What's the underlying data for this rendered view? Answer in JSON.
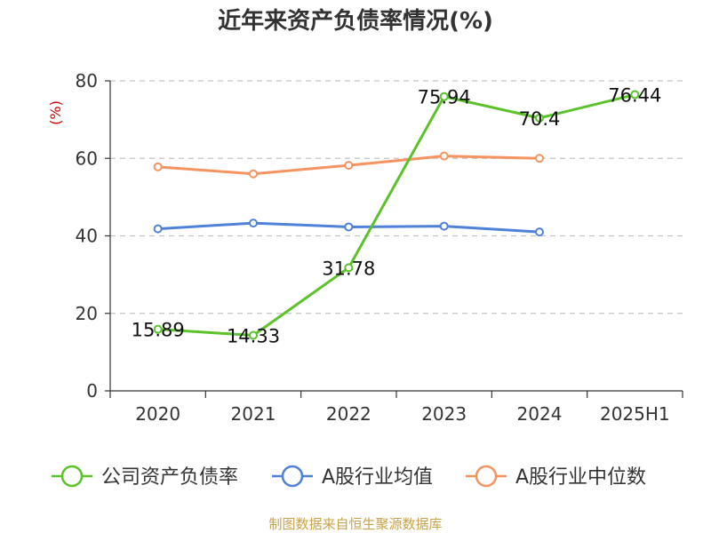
{
  "chart_data": {
    "type": "line",
    "title": "近年来资产负债率情况(%)",
    "ylabel": "(%)",
    "ylabel_color": "#cc0000",
    "ylim": [
      0,
      80
    ],
    "yticks": [
      0,
      20,
      40,
      60,
      80
    ],
    "categories": [
      "2020",
      "2021",
      "2022",
      "2023",
      "2024",
      "2025H1"
    ],
    "grid": "horizontal-dashed",
    "legend_placement": "bottom",
    "series": [
      {
        "name": "公司资产负债率",
        "color": "#5cc22a",
        "values": [
          15.89,
          14.33,
          31.78,
          75.94,
          70.4,
          76.44
        ],
        "labels": [
          "15.89",
          "14.33",
          "31.78",
          "75.94",
          "70.4",
          "76.44"
        ]
      },
      {
        "name": "A股行业均值",
        "color": "#4f81d9",
        "values": [
          41.8,
          43.3,
          42.3,
          42.5,
          41.0,
          null
        ]
      },
      {
        "name": "A股行业中位数",
        "color": "#f59461",
        "values": [
          57.8,
          56.0,
          58.2,
          60.6,
          60.0,
          null
        ]
      }
    ]
  },
  "source_text": "制图数据来自恒生聚源数据库",
  "source_color": "#c8a24a"
}
